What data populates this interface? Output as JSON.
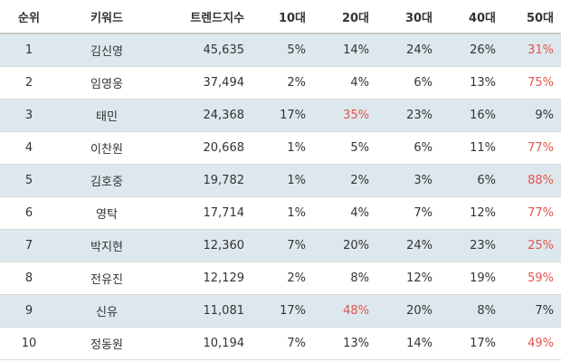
{
  "table": {
    "headers": {
      "rank": "순위",
      "keyword": "키워드",
      "trend": "트렌드지수",
      "age10": "10대",
      "age20": "20대",
      "age30": "30대",
      "age40": "40대",
      "age50": "50대"
    },
    "highlight_color": "#e0554a",
    "stripe_color": "#dde8ee",
    "rows": [
      {
        "rank": "1",
        "keyword": "김신영",
        "trend": "45,635",
        "age10": "5%",
        "age20": "14%",
        "age30": "24%",
        "age40": "26%",
        "age50": "31%",
        "highlight": "age50"
      },
      {
        "rank": "2",
        "keyword": "임영웅",
        "trend": "37,494",
        "age10": "2%",
        "age20": "4%",
        "age30": "6%",
        "age40": "13%",
        "age50": "75%",
        "highlight": "age50"
      },
      {
        "rank": "3",
        "keyword": "태민",
        "trend": "24,368",
        "age10": "17%",
        "age20": "35%",
        "age30": "23%",
        "age40": "16%",
        "age50": "9%",
        "highlight": "age20"
      },
      {
        "rank": "4",
        "keyword": "이찬원",
        "trend": "20,668",
        "age10": "1%",
        "age20": "5%",
        "age30": "6%",
        "age40": "11%",
        "age50": "77%",
        "highlight": "age50"
      },
      {
        "rank": "5",
        "keyword": "김호중",
        "trend": "19,782",
        "age10": "1%",
        "age20": "2%",
        "age30": "3%",
        "age40": "6%",
        "age50": "88%",
        "highlight": "age50"
      },
      {
        "rank": "6",
        "keyword": "영탁",
        "trend": "17,714",
        "age10": "1%",
        "age20": "4%",
        "age30": "7%",
        "age40": "12%",
        "age50": "77%",
        "highlight": "age50"
      },
      {
        "rank": "7",
        "keyword": "박지현",
        "trend": "12,360",
        "age10": "7%",
        "age20": "20%",
        "age30": "24%",
        "age40": "23%",
        "age50": "25%",
        "highlight": "age50"
      },
      {
        "rank": "8",
        "keyword": "전유진",
        "trend": "12,129",
        "age10": "2%",
        "age20": "8%",
        "age30": "12%",
        "age40": "19%",
        "age50": "59%",
        "highlight": "age50"
      },
      {
        "rank": "9",
        "keyword": "신유",
        "trend": "11,081",
        "age10": "17%",
        "age20": "48%",
        "age30": "20%",
        "age40": "8%",
        "age50": "7%",
        "highlight": "age20"
      },
      {
        "rank": "10",
        "keyword": "정동원",
        "trend": "10,194",
        "age10": "7%",
        "age20": "13%",
        "age30": "14%",
        "age40": "17%",
        "age50": "49%",
        "highlight": "age50"
      }
    ]
  }
}
